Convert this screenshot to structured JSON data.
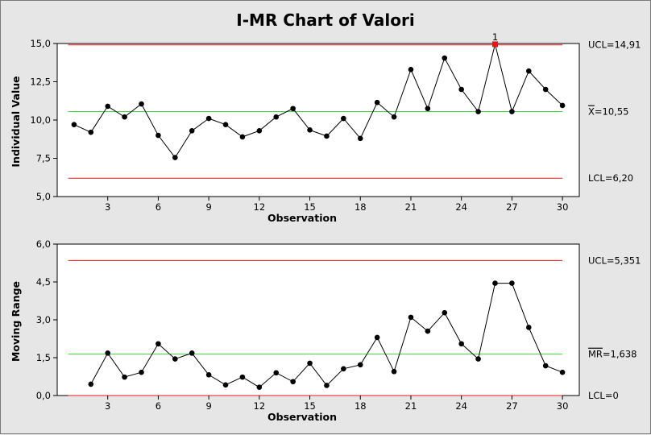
{
  "chart_data": {
    "type": "line",
    "title": "I-MR Chart of Valori",
    "colors": {
      "background": "#e6e6e6",
      "plot_background": "#ffffff",
      "limit_line": "#e8191b",
      "center_line": "#3cd83c",
      "data_line": "#000000",
      "point": "#000000",
      "out_of_control_point": "#ee1111"
    },
    "panels": [
      {
        "id": "individual",
        "xlabel": "Observation",
        "ylabel": "Individual Value",
        "ylim": [
          5.0,
          15.0
        ],
        "yticks": [
          5.0,
          7.5,
          10.0,
          12.5,
          15.0
        ],
        "ytick_labels": [
          "5,0",
          "7,5",
          "10,0",
          "12,5",
          "15,0"
        ],
        "xlim": [
          0,
          31
        ],
        "xticks": [
          3,
          6,
          9,
          12,
          15,
          18,
          21,
          24,
          27,
          30
        ],
        "xtick_labels": [
          "3",
          "6",
          "9",
          "12",
          "15",
          "18",
          "21",
          "24",
          "27",
          "30"
        ],
        "x": [
          1,
          2,
          3,
          4,
          5,
          6,
          7,
          8,
          9,
          10,
          11,
          12,
          13,
          14,
          15,
          16,
          17,
          18,
          19,
          20,
          21,
          22,
          23,
          24,
          25,
          26,
          27,
          28,
          29,
          30
        ],
        "values": [
          9.7,
          9.2,
          10.9,
          10.2,
          11.05,
          9.0,
          7.55,
          9.3,
          10.1,
          9.7,
          8.9,
          9.3,
          10.2,
          10.75,
          9.35,
          8.95,
          10.1,
          8.8,
          11.15,
          10.2,
          13.3,
          10.75,
          14.05,
          12.0,
          10.55,
          14.95,
          10.55,
          13.2,
          12.0,
          10.95
        ],
        "out_of_control": [
          {
            "x": 26,
            "label": "1"
          }
        ],
        "ucl": 14.91,
        "center": 10.55,
        "lcl": 6.2,
        "ucl_label": "UCL=14,91",
        "center_label_symbol": "X",
        "center_label_value": "=10,55",
        "lcl_label": "LCL=6,20"
      },
      {
        "id": "moving_range",
        "xlabel": "Observation",
        "ylabel": "Moving Range",
        "ylim": [
          0.0,
          6.0
        ],
        "yticks": [
          0.0,
          1.5,
          3.0,
          4.5,
          6.0
        ],
        "ytick_labels": [
          "0,0",
          "1,5",
          "3,0",
          "4,5",
          "6,0"
        ],
        "xlim": [
          0,
          31
        ],
        "xticks": [
          3,
          6,
          9,
          12,
          15,
          18,
          21,
          24,
          27,
          30
        ],
        "xtick_labels": [
          "3",
          "6",
          "9",
          "12",
          "15",
          "18",
          "21",
          "24",
          "27",
          "30"
        ],
        "x": [
          2,
          3,
          4,
          5,
          6,
          7,
          8,
          9,
          10,
          11,
          12,
          13,
          14,
          15,
          16,
          17,
          18,
          19,
          20,
          21,
          22,
          23,
          24,
          25,
          26,
          27,
          28,
          29,
          30
        ],
        "values": [
          0.45,
          1.68,
          0.73,
          0.92,
          2.05,
          1.45,
          1.68,
          0.82,
          0.42,
          0.73,
          0.33,
          0.9,
          0.55,
          1.28,
          0.4,
          1.06,
          1.22,
          2.3,
          0.95,
          3.1,
          2.55,
          3.28,
          2.05,
          1.45,
          4.45,
          4.45,
          2.7,
          1.18,
          0.92
        ],
        "out_of_control": [],
        "ucl": 5.351,
        "center": 1.638,
        "lcl": 0,
        "ucl_label": "UCL=5,351",
        "center_label_symbol": "MR",
        "center_label_value": "=1,638",
        "lcl_label": "LCL=0"
      }
    ]
  }
}
